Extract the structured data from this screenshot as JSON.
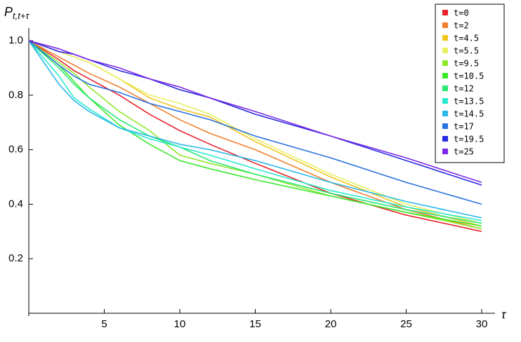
{
  "chart_data": {
    "type": "line",
    "x_label": "τ",
    "y_label": "P",
    "y_label_sub": "t,t+τ",
    "x": [
      0,
      2,
      3,
      4,
      6,
      8,
      10,
      12,
      15,
      20,
      25,
      30
    ],
    "xlim": [
      0,
      30
    ],
    "xticks": [
      5,
      10,
      15,
      20,
      25,
      30
    ],
    "ylim": [
      0,
      1
    ],
    "yticks": [
      0.2,
      0.4,
      0.6,
      0.8,
      {
        "value": 1,
        "label": "1.0"
      }
    ],
    "series": [
      {
        "name": "t=0",
        "color": "#e8222a",
        "values": [
          1,
          0.93,
          0.89,
          0.86,
          0.8,
          0.73,
          0.67,
          0.62,
          0.55,
          0.44,
          0.36,
          0.3
        ]
      },
      {
        "name": "t=2",
        "color": "#f07f2e",
        "values": [
          1,
          0.94,
          0.91,
          0.88,
          0.83,
          0.77,
          0.71,
          0.66,
          0.6,
          0.48,
          0.38,
          0.31
        ]
      },
      {
        "name": "t=4.5",
        "color": "#f0c51e",
        "values": [
          1,
          0.96,
          0.94,
          0.92,
          0.86,
          0.79,
          0.75,
          0.72,
          0.63,
          0.5,
          0.39,
          0.32
        ]
      },
      {
        "name": "t=5.5",
        "color": "#e6f060",
        "values": [
          1,
          0.96,
          0.94,
          0.92,
          0.86,
          0.8,
          0.77,
          0.73,
          0.64,
          0.51,
          0.4,
          0.33
        ]
      },
      {
        "name": "t=9.5",
        "color": "#8ee82a",
        "values": [
          1,
          0.92,
          0.88,
          0.83,
          0.74,
          0.67,
          0.58,
          0.55,
          0.51,
          0.43,
          0.37,
          0.31
        ]
      },
      {
        "name": "t=10.5",
        "color": "#3ae82a",
        "values": [
          1,
          0.91,
          0.85,
          0.79,
          0.69,
          0.62,
          0.56,
          0.53,
          0.49,
          0.43,
          0.37,
          0.32
        ]
      },
      {
        "name": "t=12",
        "color": "#2ae873",
        "values": [
          1,
          0.9,
          0.84,
          0.79,
          0.71,
          0.65,
          0.61,
          0.56,
          0.51,
          0.44,
          0.38,
          0.33
        ]
      },
      {
        "name": "t=13.5",
        "color": "#2ae8d0",
        "values": [
          1,
          0.87,
          0.79,
          0.75,
          0.68,
          0.64,
          0.61,
          0.58,
          0.53,
          0.45,
          0.39,
          0.34
        ]
      },
      {
        "name": "t=14.5",
        "color": "#2ab8e8",
        "values": [
          1,
          0.84,
          0.78,
          0.74,
          0.68,
          0.65,
          0.62,
          0.6,
          0.56,
          0.48,
          0.41,
          0.35
        ]
      },
      {
        "name": "t=17",
        "color": "#2a72e0",
        "values": [
          1,
          0.91,
          0.87,
          0.84,
          0.81,
          0.77,
          0.74,
          0.71,
          0.65,
          0.57,
          0.48,
          0.4
        ]
      },
      {
        "name": "t=19.5",
        "color": "#2a2ae0",
        "values": [
          1,
          0.96,
          0.95,
          0.93,
          0.89,
          0.86,
          0.82,
          0.79,
          0.73,
          0.65,
          0.56,
          0.47
        ]
      },
      {
        "name": "t=25",
        "color": "#7a2ae8",
        "values": [
          1,
          0.97,
          0.95,
          0.93,
          0.9,
          0.86,
          0.83,
          0.79,
          0.74,
          0.65,
          0.57,
          0.48
        ]
      }
    ]
  }
}
